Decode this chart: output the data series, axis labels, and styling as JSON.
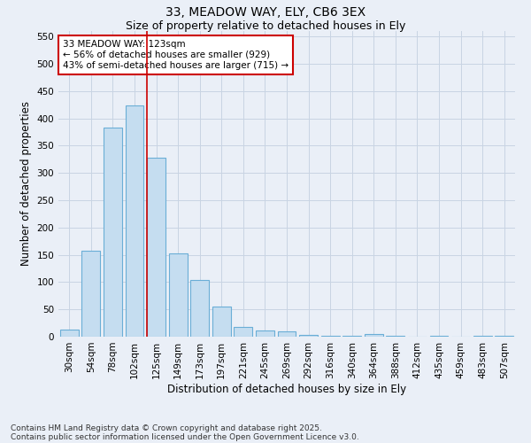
{
  "title1": "33, MEADOW WAY, ELY, CB6 3EX",
  "title2": "Size of property relative to detached houses in Ely",
  "xlabel": "Distribution of detached houses by size in Ely",
  "ylabel": "Number of detached properties",
  "categories": [
    "30sqm",
    "54sqm",
    "78sqm",
    "102sqm",
    "125sqm",
    "149sqm",
    "173sqm",
    "197sqm",
    "221sqm",
    "245sqm",
    "269sqm",
    "292sqm",
    "316sqm",
    "340sqm",
    "364sqm",
    "388sqm",
    "412sqm",
    "435sqm",
    "459sqm",
    "483sqm",
    "507sqm"
  ],
  "values": [
    13,
    157,
    383,
    423,
    328,
    152,
    104,
    55,
    18,
    12,
    10,
    4,
    2,
    1,
    5,
    1,
    0,
    1,
    0,
    1,
    2
  ],
  "bar_color": "#c5ddf0",
  "bar_edge_color": "#6aaed6",
  "grid_color": "#c8d4e3",
  "bg_color": "#eaeff7",
  "vline_color": "#cc0000",
  "vline_index": 4,
  "annotation_line1": "33 MEADOW WAY: 123sqm",
  "annotation_line2": "← 56% of detached houses are smaller (929)",
  "annotation_line3": "43% of semi-detached houses are larger (715) →",
  "annotation_box_color": "#ffffff",
  "annotation_box_edge": "#cc0000",
  "ylim": [
    0,
    560
  ],
  "yticks": [
    0,
    50,
    100,
    150,
    200,
    250,
    300,
    350,
    400,
    450,
    500,
    550
  ],
  "footer1": "Contains HM Land Registry data © Crown copyright and database right 2025.",
  "footer2": "Contains public sector information licensed under the Open Government Licence v3.0.",
  "title_fontsize": 10,
  "subtitle_fontsize": 9,
  "axis_label_fontsize": 8.5,
  "tick_fontsize": 7.5,
  "annotation_fontsize": 7.5,
  "footer_fontsize": 6.5
}
